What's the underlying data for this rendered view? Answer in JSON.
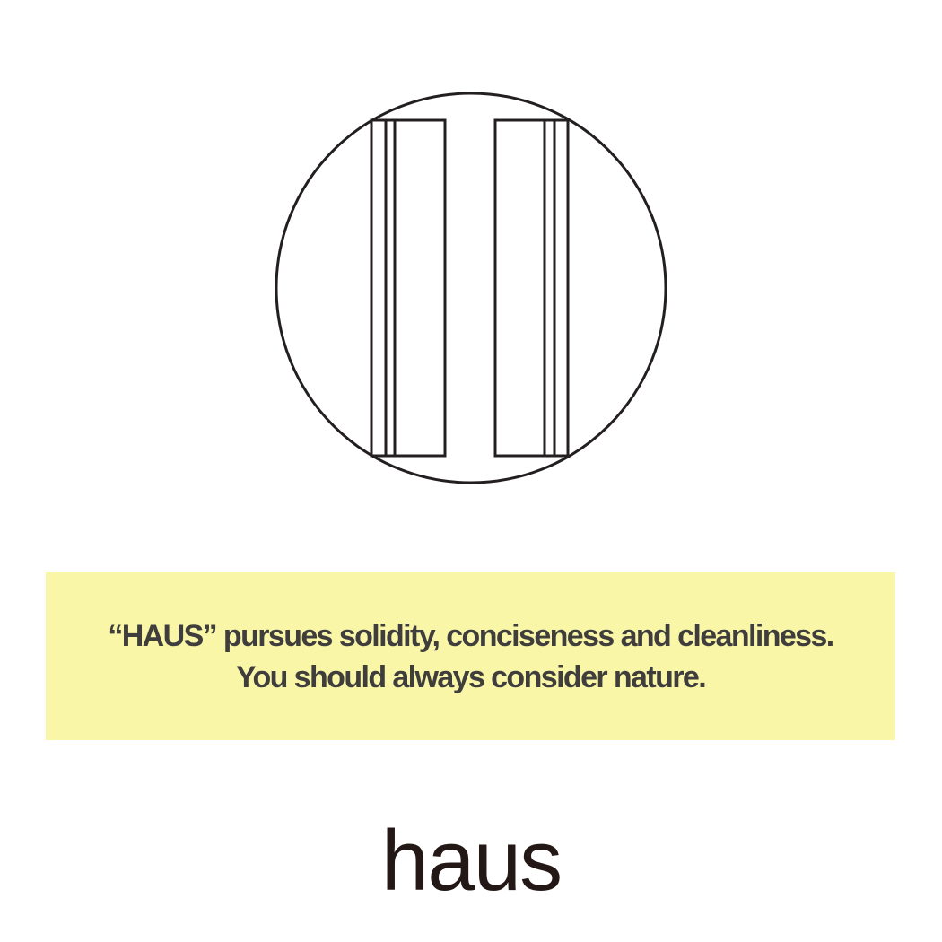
{
  "colors": {
    "background": "#ffffff",
    "banner_fill": "#f9f6a8",
    "banner_text": "#3f3e3c",
    "line_art": "#231f20",
    "brand_text": "#231815"
  },
  "icon": "window-frames-in-circle-icon",
  "banner": {
    "line1": "“HAUS” pursues solidity, conciseness and cleanliness.",
    "line2": "You should always consider nature."
  },
  "brand": {
    "wordmark": "haus"
  }
}
